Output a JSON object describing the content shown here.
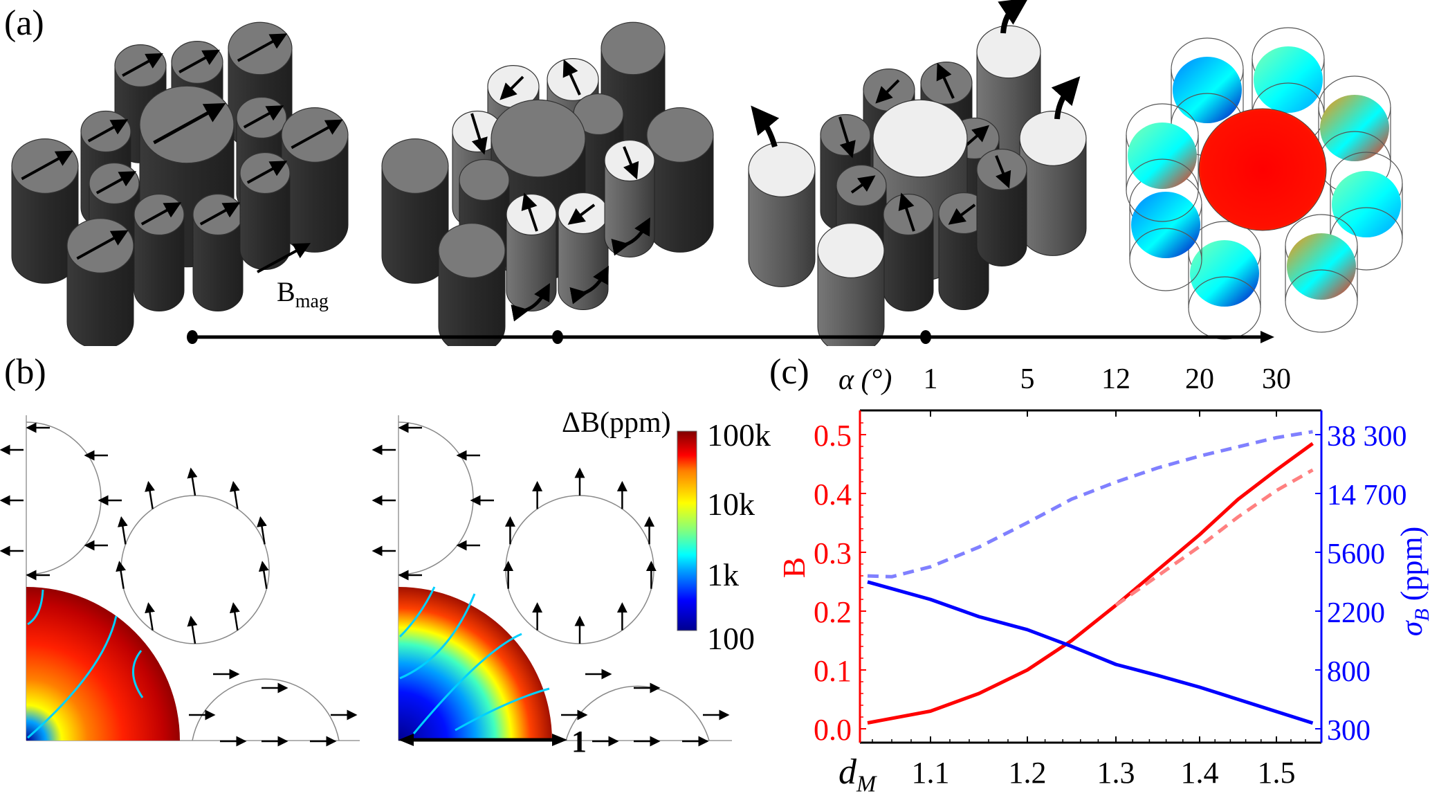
{
  "panel_labels": {
    "a": "(a)",
    "b": "(b)",
    "c": "(c)"
  },
  "panel_a": {
    "field_label_main": "B",
    "field_label_sub": "mag",
    "stages": [
      {
        "name": "uniform magnetization",
        "highlight": "none"
      },
      {
        "name": "rotating inner cylinders",
        "highlight": "inner"
      },
      {
        "name": "rotating outer cylinders",
        "highlight": "outer"
      },
      {
        "name": "simulated field map",
        "highlight": "colormap"
      }
    ],
    "timeline_points": 3
  },
  "panel_b": {
    "colorbar_title": "ΔB(ppm)",
    "colorbar_ticks": [
      "100k",
      "10k",
      "1k",
      "100"
    ],
    "scale_bar_label": "1",
    "colormap": [
      "#00008f",
      "#0000ff",
      "#00a0ff",
      "#00ffff",
      "#80ff80",
      "#ffff00",
      "#ff8000",
      "#ff0000",
      "#800000"
    ]
  },
  "chart_data": {
    "type": "line",
    "title": "",
    "xlabel": "d_M",
    "xlabel_main": "d",
    "xlabel_sub": "M",
    "x_ticks": [
      1.1,
      1.2,
      1.3,
      1.4,
      1.5
    ],
    "x_tick_labels": [
      "1.1",
      "1.2",
      "1.3",
      "1.4",
      "1.5"
    ],
    "xlim": [
      1.03,
      1.56
    ],
    "top_axis_label": "α (°)",
    "top_axis_ticks": [
      "1",
      "5",
      "12",
      "20",
      "30"
    ],
    "ylabel_left": "B",
    "ylim_left": [
      0.0,
      0.53
    ],
    "y_left_ticks": [
      0.0,
      0.1,
      0.2,
      0.3,
      0.4,
      0.5
    ],
    "y_left_tick_labels": [
      "0.0",
      "0.1",
      "0.2",
      "0.3",
      "0.4",
      "0.5"
    ],
    "ylabel_right": "σ_B (ppm)",
    "ylabel_right_main": "σ",
    "ylabel_right_sub": "B",
    "ylabel_right_unit": "(ppm)",
    "y_right_ticks": [
      300,
      800,
      2200,
      5600,
      14700,
      38300
    ],
    "y_right_tick_labels": [
      "300",
      "800",
      "2200",
      "5600",
      "14 700",
      "38 300"
    ],
    "left_axis_color": "#ff0000",
    "right_axis_color": "#0000ff",
    "series": [
      {
        "name": "B (solid)",
        "axis": "left",
        "style": "solid",
        "color": "#ff0000",
        "x": [
          1.035,
          1.1,
          1.15,
          1.2,
          1.25,
          1.3,
          1.35,
          1.4,
          1.45,
          1.5,
          1.55
        ],
        "y": [
          0.01,
          0.03,
          0.06,
          0.1,
          0.15,
          0.21,
          0.27,
          0.33,
          0.39,
          0.44,
          0.485
        ]
      },
      {
        "name": "B (dashed)",
        "axis": "left",
        "style": "dashed",
        "color": "#ff8080",
        "x": [
          1.3,
          1.35,
          1.4,
          1.45,
          1.5,
          1.55
        ],
        "y": [
          0.21,
          0.26,
          0.31,
          0.36,
          0.405,
          0.44
        ]
      },
      {
        "name": "σ_B (solid)",
        "axis": "right",
        "style": "solid",
        "color": "#0000ff",
        "x": [
          1.035,
          1.1,
          1.15,
          1.2,
          1.25,
          1.3,
          1.35,
          1.4,
          1.45,
          1.5,
          1.55
        ],
        "y": [
          3500,
          2650,
          2000,
          1600,
          1200,
          880,
          730,
          600,
          490,
          400,
          330
        ]
      },
      {
        "name": "σ_B (dashed)",
        "axis": "right",
        "style": "dashed",
        "color": "#8080ff",
        "x": [
          1.035,
          1.06,
          1.1,
          1.15,
          1.2,
          1.25,
          1.3,
          1.35,
          1.4,
          1.45,
          1.5,
          1.55
        ],
        "y": [
          3850,
          3800,
          4450,
          6100,
          9100,
          13400,
          17700,
          22300,
          27000,
          31400,
          36500,
          40200
        ]
      }
    ],
    "grid": false,
    "legend": "none"
  }
}
